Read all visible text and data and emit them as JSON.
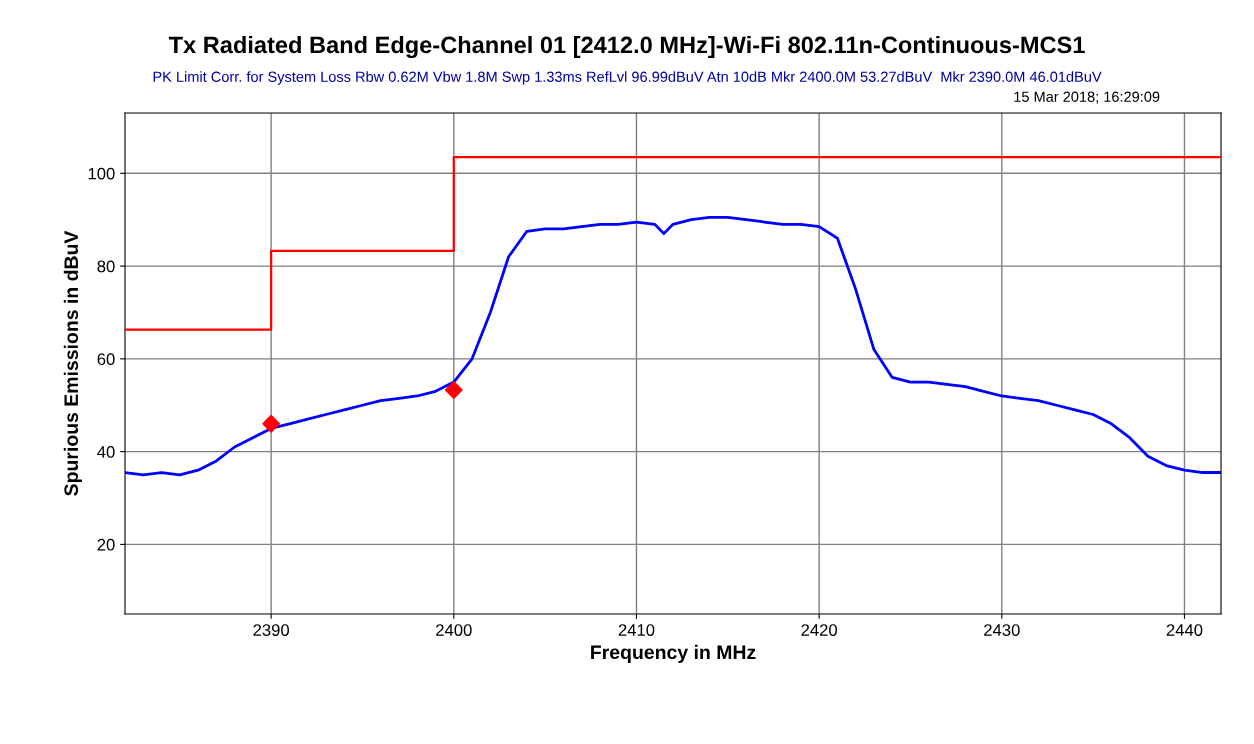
{
  "chart_data": {
    "type": "line",
    "title": "Tx Radiated Band Edge-Channel 01 [2412.0 MHz]-Wi-Fi 802.11n-Continuous-MCS1",
    "subtitle": "PK Limit Corr. for System Loss Rbw 0.62M Vbw 1.8M Swp 1.33ms RefLvl 96.99dBuV Atn 10dB Mkr 2400.0M 53.27dBuV  Mkr 2390.0M 46.01dBuV",
    "annotations": [
      "15 Mar 2018; 16:29:09"
    ],
    "xlabel": "Frequency in MHz",
    "ylabel": "Spurious Emissions in dBuV",
    "series": [
      {
        "type": "step",
        "color": "#ff0000",
        "x": [
          2382,
          2390,
          2400,
          2442
        ],
        "values": [
          66.3,
          83.3,
          103.5,
          103.5
        ]
      },
      {
        "color": "#0000ff",
        "x": [
          2382,
          2383,
          2384,
          2385,
          2386,
          2387,
          2388,
          2389,
          2390,
          2391,
          2392,
          2393,
          2394,
          2395,
          2396,
          2397,
          2398,
          2399,
          2400,
          2401,
          2402,
          2403,
          2404,
          2405,
          2406,
          2407,
          2408,
          2409,
          2410,
          2411,
          2411.5,
          2412,
          2413,
          2414,
          2415,
          2416,
          2417,
          2418,
          2419,
          2420,
          2421,
          2422,
          2423,
          2424,
          2425,
          2426,
          2427,
          2428,
          2429,
          2430,
          2431,
          2432,
          2433,
          2434,
          2435,
          2436,
          2437,
          2438,
          2439,
          2440,
          2441,
          2442
        ],
        "values": [
          35.5,
          35,
          35.5,
          35,
          36,
          38,
          41,
          43,
          45,
          46,
          47,
          48,
          49,
          50,
          51,
          51.5,
          52,
          53,
          55,
          60,
          70,
          82,
          87.5,
          88,
          88,
          88.5,
          89,
          89,
          89.5,
          89,
          87,
          89,
          90,
          90.5,
          90.5,
          90,
          89.5,
          89,
          89,
          88.5,
          86,
          75,
          62,
          56,
          55,
          55,
          54.5,
          54,
          53,
          52,
          51.5,
          51,
          50,
          49,
          48,
          46,
          43,
          39,
          37,
          36,
          35.5,
          35.5
        ]
      },
      {
        "type": "scatter",
        "color": "#ff0000",
        "marker": "diamond",
        "x": [
          2390,
          2400
        ],
        "values": [
          46.01,
          53.27
        ]
      }
    ],
    "xlim": [
      2382,
      2442
    ],
    "xticks": [
      2390,
      2400,
      2410,
      2420,
      2430,
      2440
    ],
    "ylim": [
      5,
      113
    ],
    "yticks": [
      20,
      40,
      60,
      80,
      100
    ],
    "grid": true
  }
}
